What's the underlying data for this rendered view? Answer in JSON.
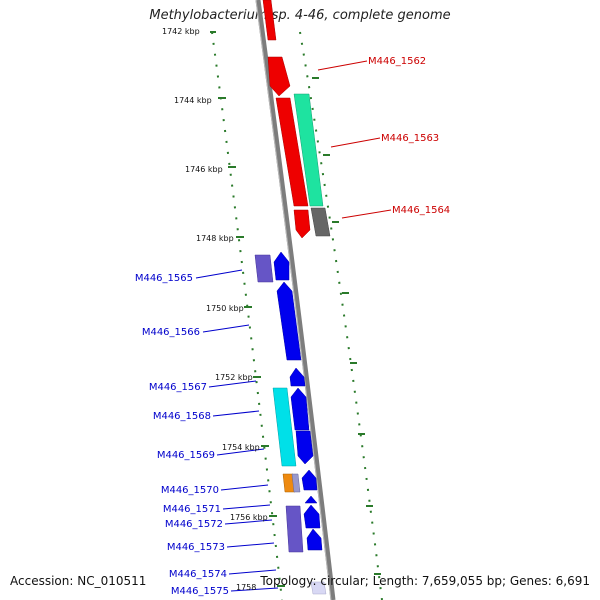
{
  "title": "Methylobacterium sp. 4-46, complete genome",
  "footer": {
    "accession": "Accession: NC_010511",
    "summary": "Topology: circular; Length: 7,659,055 bp; Genes: 6,691"
  },
  "colors": {
    "red": "#ee0000",
    "teal": "#1ee3a0",
    "grey": "#666666",
    "blue": "#0000ee",
    "slate": "#6655c6",
    "cyan": "#00e0e8",
    "orange": "#ee8a10",
    "tick": "#2a7a2a",
    "backbone": "#888888"
  },
  "scale_labels": [
    "1742 kbp",
    "1744 kbp",
    "1746 kbp",
    "1748 kbp",
    "1750 kbp",
    "1752 kbp",
    "1754 kbp",
    "1756 kbp",
    "1758"
  ],
  "gene_labels": {
    "right": [
      "M446_1562",
      "M446_1563",
      "M446_1564"
    ],
    "left": [
      "M446_1565",
      "M446_1566",
      "M446_1567",
      "M446_1568",
      "M446_1569",
      "M446_1570",
      "M446_1571",
      "M446_1572",
      "M446_1573",
      "M446_1574",
      "M446_1575"
    ]
  }
}
